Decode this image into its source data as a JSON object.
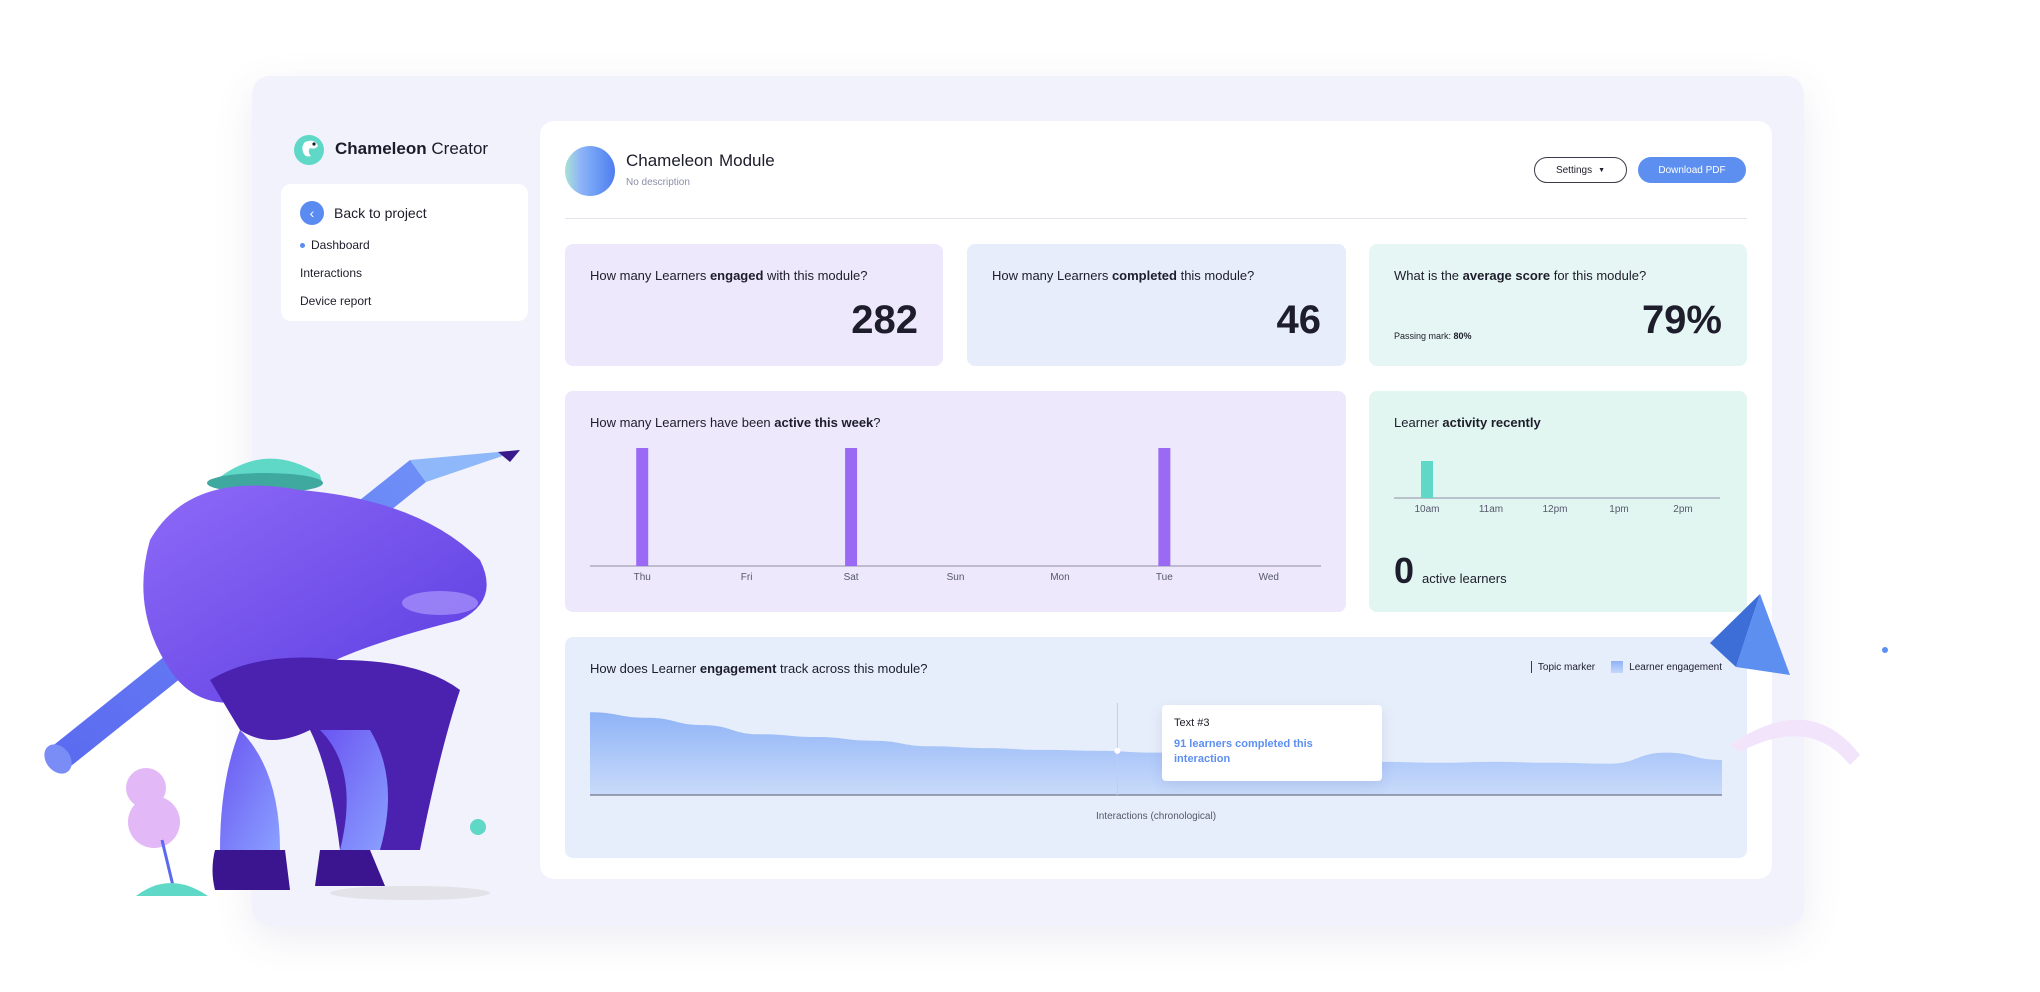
{
  "brand": {
    "name_bold": "Chameleon",
    "name_light": "Creator"
  },
  "sidebar": {
    "back_label": "Back to project",
    "items": [
      {
        "label": "Dashboard",
        "active": true
      },
      {
        "label": "Interactions",
        "active": false
      },
      {
        "label": "Device report",
        "active": false
      }
    ]
  },
  "header": {
    "title": "Chameleon",
    "title_suffix": "Module",
    "description": "No description",
    "settings_label": "Settings",
    "download_label": "Download PDF"
  },
  "stats": {
    "engaged": {
      "q_pre": "How many Learners ",
      "q_bold": "engaged",
      "q_post": " with this module?",
      "value": "282"
    },
    "completed": {
      "q_pre": "How many Learners ",
      "q_bold": "completed",
      "q_post": " this module?",
      "value": "46"
    },
    "score": {
      "q_pre": "What is the ",
      "q_bold": "average score",
      "q_post": " for this module?",
      "value": "79%",
      "passing_label": "Passing mark: ",
      "passing_value": "80%"
    }
  },
  "week": {
    "q_pre": "How many Learners have been ",
    "q_bold": "active this week",
    "q_post": "?"
  },
  "recent": {
    "q_pre": "Learner ",
    "q_bold": "activity recently",
    "count": "0",
    "count_label": "active learners"
  },
  "track": {
    "q_pre": "How does Learner ",
    "q_bold": "engagement",
    "q_post": " track across this module?",
    "legend_topic": "Topic marker",
    "legend_engagement": "Learner engagement",
    "xlabel": "Interactions (chronological)",
    "tooltip_title": "Text #3",
    "tooltip_text": "91 learners completed this interaction"
  },
  "colors": {
    "accent": "#5d8ff1",
    "bar": "#9b6af5",
    "teal": "#5fd8c8"
  },
  "chart_data": [
    {
      "type": "bar",
      "categories": [
        "Thu",
        "Fri",
        "Sat",
        "Sun",
        "Mon",
        "Tue",
        "Wed"
      ],
      "values": [
        1,
        0,
        1,
        0,
        0,
        1,
        0
      ]
    },
    {
      "type": "bar",
      "categories": [
        "10am",
        "11am",
        "12pm",
        "1pm",
        "2pm"
      ],
      "values": [
        1,
        0,
        0,
        0,
        0
      ]
    },
    {
      "type": "area",
      "x": [
        0,
        1,
        2,
        3,
        4,
        5,
        6,
        7,
        8,
        9,
        10,
        11,
        12,
        13,
        14,
        15,
        16,
        17,
        18,
        19,
        20
      ],
      "values": [
        90,
        84,
        76,
        66,
        63,
        59,
        53,
        51,
        49,
        48,
        46,
        42,
        37,
        36,
        36,
        35,
        36,
        35,
        34,
        46,
        38
      ],
      "ylim": [
        0,
        100
      ],
      "markers": [
        9
      ]
    }
  ]
}
